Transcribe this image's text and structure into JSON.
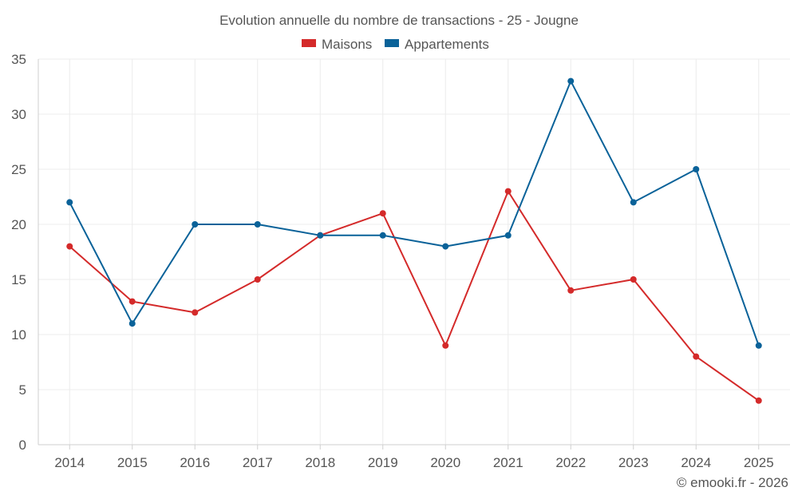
{
  "chart_data": {
    "type": "line",
    "title": "Evolution annuelle du nombre de transactions - 25 - Jougne",
    "categories": [
      "2014",
      "2015",
      "2016",
      "2017",
      "2018",
      "2019",
      "2020",
      "2021",
      "2022",
      "2023",
      "2024",
      "2025"
    ],
    "series": [
      {
        "name": "Maisons",
        "color": "#d42a2a",
        "values": [
          18,
          13,
          12,
          15,
          19,
          21,
          9,
          23,
          14,
          15,
          8,
          4
        ]
      },
      {
        "name": "Appartements",
        "color": "#0a6299",
        "values": [
          22,
          11,
          20,
          20,
          19,
          19,
          18,
          19,
          33,
          22,
          25,
          9
        ]
      }
    ],
    "ylim": [
      0,
      35
    ],
    "yticks": [
      0,
      5,
      10,
      15,
      20,
      25,
      30,
      35
    ],
    "xlabel": "",
    "ylabel": "",
    "grid": true,
    "legend_position": "top-center"
  },
  "credit": "© emooki.fr - 2026"
}
